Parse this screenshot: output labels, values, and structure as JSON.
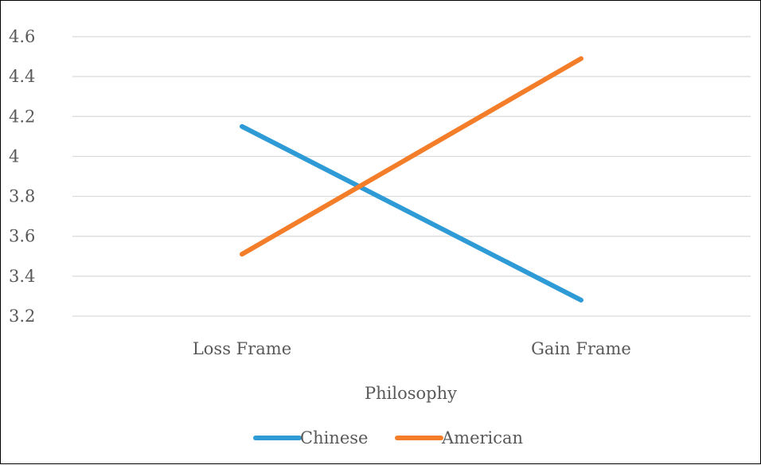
{
  "chart_data": {
    "type": "line",
    "title": "",
    "xlabel": "Philosophy",
    "ylabel": "",
    "categories": [
      "Loss Frame",
      "Gain Frame"
    ],
    "ylim": [
      3.2,
      4.6
    ],
    "yticks": [
      3.2,
      3.4,
      3.6,
      3.8,
      4,
      4.2,
      4.4,
      4.6
    ],
    "ytick_labels": [
      "3.2",
      "3.4",
      "3.6",
      "3.8",
      "4",
      "4.2",
      "4.4",
      "4.6"
    ],
    "grid": true,
    "legend_position": "bottom",
    "series": [
      {
        "name": "Chinese",
        "values": [
          4.15,
          3.28
        ],
        "color": "#2e9bd6"
      },
      {
        "name": "American",
        "values": [
          3.51,
          4.49
        ],
        "color": "#f47d2a"
      }
    ]
  }
}
